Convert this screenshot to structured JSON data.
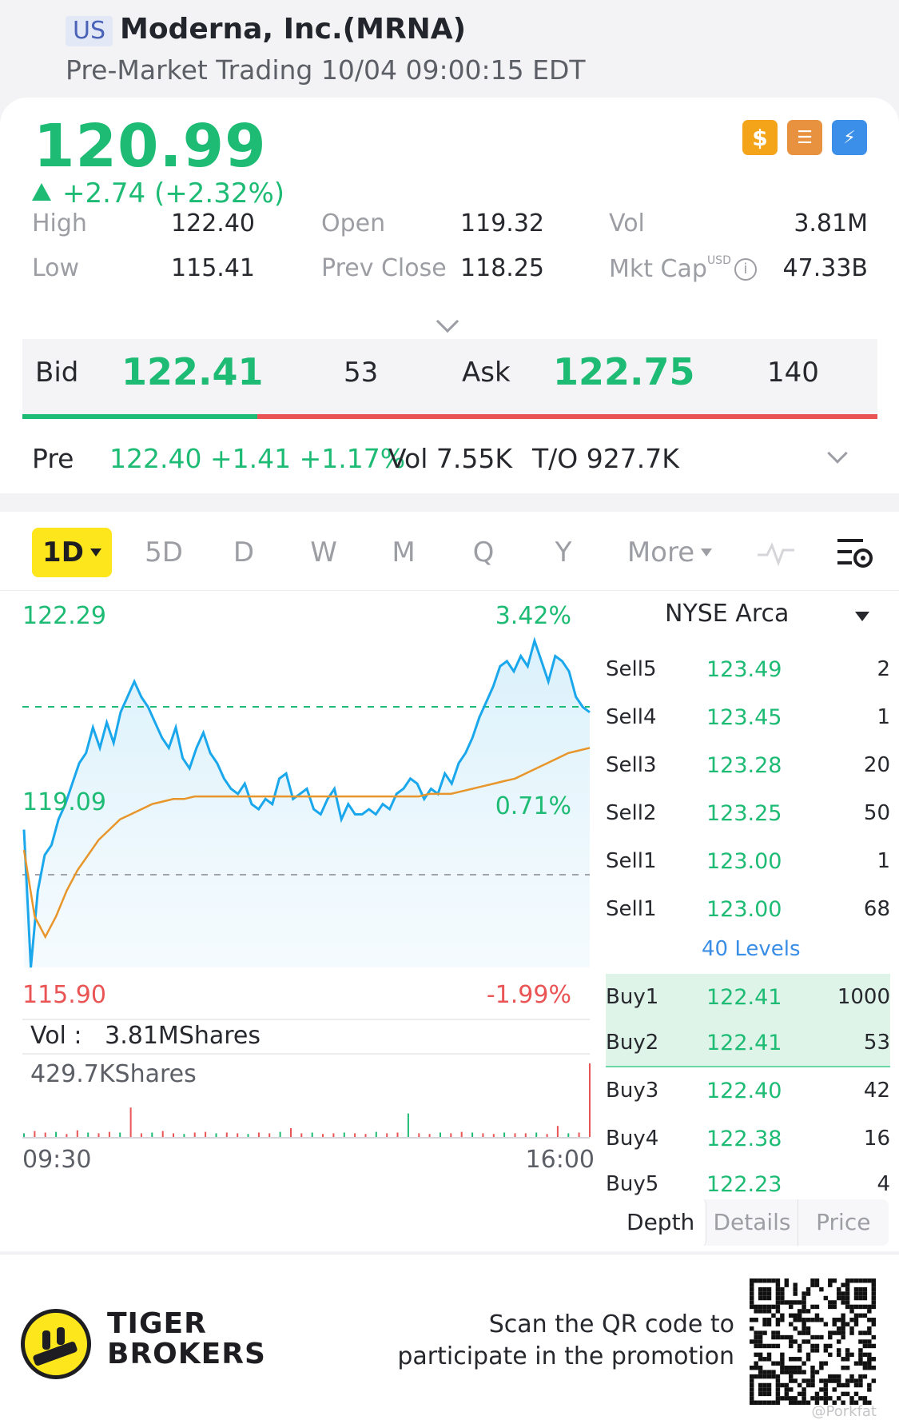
{
  "header": {
    "market": "US",
    "name": "Moderna, Inc.(MRNA)",
    "session": "Pre-Market Trading 10/04 09:00:15 EDT"
  },
  "quote": {
    "last": "120.99",
    "change": "+2.74 (+2.32%)",
    "badges": [
      "dollar-icon",
      "stack-icon",
      "flash-icon"
    ],
    "stats": {
      "high_label": "High",
      "high": "122.40",
      "low_label": "Low",
      "low": "115.41",
      "open_label": "Open",
      "open": "119.32",
      "prev_close_label": "Prev Close",
      "prev_close": "118.25",
      "vol_label": "Vol",
      "vol": "3.81M",
      "mkt_cap_label": "Mkt Cap",
      "mkt_cap_unit": "USD",
      "mkt_cap": "47.33B"
    }
  },
  "bidask": {
    "bid_label": "Bid",
    "bid": "122.41",
    "bid_size": "53",
    "ask_label": "Ask",
    "ask": "122.75",
    "ask_size": "140",
    "bid_fraction": 0.275
  },
  "pre": {
    "label": "Pre",
    "quote": "122.40 +1.41 +1.17%",
    "vol": "Vol 7.55K",
    "turnover": "T/O 927.7K"
  },
  "tabs": [
    "1D",
    "5D",
    "D",
    "W",
    "M",
    "Q",
    "Y",
    "More"
  ],
  "chart_labels": {
    "high": "122.29",
    "high_pct": "3.42%",
    "mid": "119.09",
    "mid_pct": "0.71%",
    "low": "115.90",
    "low_pct": "-1.99%",
    "vol": "Vol :   3.81MShares",
    "vol_max": "429.7KShares",
    "t_start": "09:30",
    "t_end": "16:00"
  },
  "chart_data": {
    "type": "line",
    "x_range": [
      "09:30",
      "16:00"
    ],
    "y_range": [
      115.9,
      122.29
    ],
    "prev_close": 118.25,
    "reference_price": 119.09,
    "series": [
      {
        "color": "#1aa7ec",
        "values": [
          118.6,
          115.9,
          117.4,
          118.1,
          118.3,
          118.8,
          119.1,
          119.5,
          119.9,
          120.1,
          120.6,
          120.2,
          120.7,
          120.3,
          120.9,
          121.2,
          121.5,
          121.2,
          121.0,
          120.7,
          120.4,
          120.2,
          120.6,
          120.0,
          119.8,
          120.2,
          120.5,
          120.1,
          119.9,
          119.6,
          119.4,
          119.3,
          119.5,
          119.1,
          119.0,
          119.2,
          119.1,
          119.6,
          119.7,
          119.2,
          119.3,
          119.4,
          119.0,
          118.9,
          119.2,
          119.4,
          118.8,
          119.1,
          118.9,
          118.9,
          119.0,
          118.9,
          119.1,
          119.0,
          119.3,
          119.4,
          119.6,
          119.5,
          119.2,
          119.4,
          119.3,
          119.7,
          119.5,
          119.9,
          120.1,
          120.4,
          120.8,
          121.1,
          121.4,
          121.8,
          121.9,
          121.7,
          122.0,
          121.8,
          122.3,
          121.9,
          121.5,
          122.0,
          121.9,
          121.7,
          121.2,
          121.0,
          120.9
        ]
      },
      {
        "color": "#e8962b",
        "values": [
          118.2,
          116.9,
          116.5,
          116.9,
          117.4,
          117.8,
          118.1,
          118.4,
          118.6,
          118.8,
          118.9,
          119.0,
          119.1,
          119.15,
          119.2,
          119.2,
          119.25,
          119.25,
          119.25,
          119.25,
          119.25,
          119.25,
          119.25,
          119.25,
          119.25,
          119.25,
          119.25,
          119.25,
          119.25,
          119.25,
          119.25,
          119.25,
          119.25,
          119.25,
          119.25,
          119.25,
          119.25,
          119.25,
          119.3,
          119.3,
          119.3,
          119.35,
          119.4,
          119.45,
          119.5,
          119.55,
          119.6,
          119.7,
          119.8,
          119.9,
          120.0,
          120.1,
          120.15,
          120.2
        ]
      }
    ],
    "volume": [
      5,
      8,
      6,
      7,
      4,
      9,
      6,
      5,
      7,
      6,
      40,
      5,
      6,
      8,
      5,
      4,
      6,
      7,
      5,
      6,
      5,
      4,
      6,
      5,
      7,
      12,
      5,
      6,
      4,
      5,
      6,
      5,
      4,
      7,
      5,
      6,
      32,
      5,
      4,
      6,
      5,
      7,
      6,
      5,
      4,
      6,
      5,
      5,
      6,
      4,
      15,
      5,
      6,
      100
    ]
  },
  "order_book": {
    "venue": "NYSE Arca",
    "asks": [
      {
        "side": "Sell5",
        "price": "123.49",
        "size": "2"
      },
      {
        "side": "Sell4",
        "price": "123.45",
        "size": "1"
      },
      {
        "side": "Sell3",
        "price": "123.28",
        "size": "20"
      },
      {
        "side": "Sell2",
        "price": "123.25",
        "size": "50"
      },
      {
        "side": "Sell1",
        "price": "123.00",
        "size": "1"
      },
      {
        "side": "Sell1",
        "price": "123.00",
        "size": "68"
      }
    ],
    "levels_link": "40 Levels",
    "bids": [
      {
        "side": "Buy1",
        "price": "122.41",
        "size": "1000"
      },
      {
        "side": "Buy2",
        "price": "122.41",
        "size": "53"
      },
      {
        "side": "Buy3",
        "price": "122.40",
        "size": "42"
      },
      {
        "side": "Buy4",
        "price": "122.38",
        "size": "16"
      },
      {
        "side": "Buy5",
        "price": "122.23",
        "size": "4"
      }
    ],
    "footer_tabs": [
      "Depth",
      "Details",
      "Price"
    ]
  },
  "promo": {
    "brand_line1": "TIGER",
    "brand_line2": "BROKERS",
    "text_line1": "Scan the QR code to",
    "text_line2": "participate in the promotion",
    "handle": "@Porkfat"
  },
  "colors": {
    "up": "#1dbb74",
    "down": "#ea5454",
    "price_line": "#1aa7ec",
    "avg_line": "#e8962b",
    "active_tab": "#fde61c",
    "link": "#3a8ee6"
  }
}
